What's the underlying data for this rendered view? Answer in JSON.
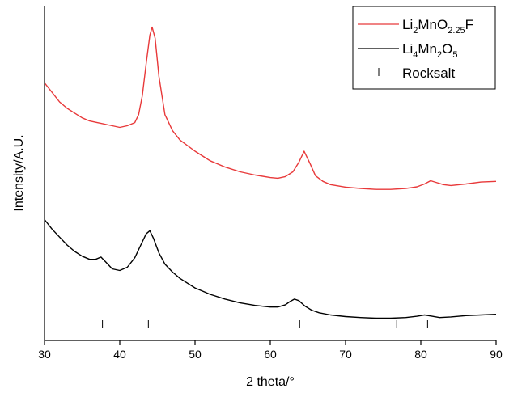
{
  "chart_data": {
    "type": "line",
    "xlabel": "2 theta/°",
    "ylabel": "Intensity/A.U.",
    "xlim": [
      30,
      90
    ],
    "ylim": [
      -0.05,
      1.0
    ],
    "x_ticks": [
      30,
      40,
      50,
      60,
      70,
      80,
      90
    ],
    "y_ticks_shown": false,
    "grid": false,
    "legend_position": "top-right",
    "colors": {
      "red_series": "#e8393a",
      "black_series": "#000000",
      "axis": "#000000"
    },
    "series": [
      {
        "name": "Li2MnO2.25F",
        "color": "#e8393a",
        "x": [
          30,
          31,
          32,
          33,
          34,
          35,
          36,
          37,
          38,
          39,
          40,
          41,
          42,
          42.5,
          43,
          43.5,
          44,
          44.3,
          44.7,
          45.2,
          46,
          47,
          48,
          50,
          52,
          54,
          56,
          58,
          60,
          61,
          62,
          63,
          63.8,
          64.5,
          65.3,
          66,
          67,
          68,
          70,
          72,
          74,
          76,
          78,
          79.5,
          80.5,
          81.3,
          82,
          83,
          84,
          86,
          88,
          90
        ],
        "values": [
          0.76,
          0.73,
          0.7,
          0.68,
          0.665,
          0.65,
          0.64,
          0.635,
          0.63,
          0.625,
          0.62,
          0.625,
          0.635,
          0.66,
          0.72,
          0.82,
          0.91,
          0.935,
          0.9,
          0.78,
          0.66,
          0.61,
          0.58,
          0.545,
          0.515,
          0.495,
          0.48,
          0.47,
          0.462,
          0.46,
          0.465,
          0.48,
          0.51,
          0.545,
          0.505,
          0.468,
          0.45,
          0.44,
          0.432,
          0.428,
          0.425,
          0.425,
          0.428,
          0.433,
          0.442,
          0.452,
          0.447,
          0.44,
          0.437,
          0.442,
          0.448,
          0.45
        ]
      },
      {
        "name": "Li4Mn2O5",
        "color": "#000000",
        "x": [
          30,
          31,
          32,
          33,
          34,
          35,
          36,
          36.8,
          37.5,
          38.2,
          39,
          40,
          41,
          42,
          42.8,
          43.5,
          44,
          44.5,
          45.2,
          46,
          47,
          48,
          50,
          52,
          54,
          56,
          58,
          60,
          61,
          62,
          62.6,
          63.2,
          63.8,
          64.6,
          65.5,
          66.5,
          68,
          70,
          72,
          74,
          76,
          78,
          79.5,
          80.5,
          81.5,
          82.5,
          84,
          86,
          88,
          90
        ],
        "values": [
          0.33,
          0.3,
          0.275,
          0.25,
          0.23,
          0.215,
          0.205,
          0.205,
          0.212,
          0.195,
          0.175,
          0.17,
          0.18,
          0.21,
          0.25,
          0.285,
          0.295,
          0.27,
          0.225,
          0.19,
          0.165,
          0.145,
          0.115,
          0.095,
          0.08,
          0.068,
          0.06,
          0.055,
          0.055,
          0.062,
          0.072,
          0.08,
          0.075,
          0.058,
          0.045,
          0.037,
          0.03,
          0.025,
          0.022,
          0.02,
          0.02,
          0.022,
          0.026,
          0.03,
          0.026,
          0.022,
          0.024,
          0.028,
          0.03,
          0.032
        ]
      },
      {
        "name": "Rocksalt",
        "type": "reference-ticks",
        "color": "#000000",
        "x": [
          37.7,
          43.8,
          63.9,
          76.8,
          80.9
        ]
      }
    ]
  },
  "legend": {
    "items": [
      {
        "label": "Li2MnO2.25F",
        "base1": "Li",
        "sub1": "2",
        "base2": "MnO",
        "sub2": "2.25",
        "base3": "F",
        "marker": "line",
        "color": "#e8393a"
      },
      {
        "label": "Li4Mn2O5",
        "base1": "Li",
        "sub1": "4",
        "base2": "Mn",
        "sub2": "2",
        "base3": "O",
        "sub3": "5",
        "marker": "line",
        "color": "#000000"
      },
      {
        "label": "Rocksalt",
        "marker": "vertical-tick",
        "color": "#000000"
      }
    ]
  }
}
